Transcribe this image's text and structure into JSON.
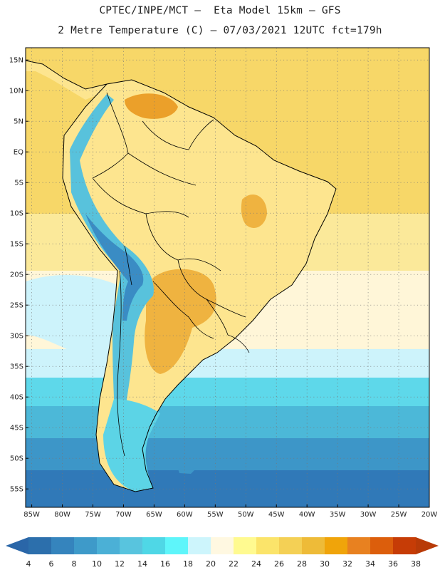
{
  "title_line_1": "CPTEC/INPE/MCT –  Eta Model 15km – GFS",
  "title_line_2": "2 Metre Temperature (C) – 07/03/2021 12UTC fct=179h",
  "map": {
    "lat_labels": [
      "15N",
      "10N",
      "5N",
      "EQ",
      "5S",
      "10S",
      "15S",
      "20S",
      "25S",
      "30S",
      "35S",
      "40S",
      "45S",
      "50S",
      "55S"
    ],
    "lat_values": [
      15,
      10,
      5,
      0,
      -5,
      -10,
      -15,
      -20,
      -25,
      -30,
      -35,
      -40,
      -45,
      -50,
      -55
    ],
    "lon_labels": [
      "85W",
      "80W",
      "75W",
      "70W",
      "65W",
      "60W",
      "55W",
      "50W",
      "45W",
      "40W",
      "35W",
      "30W",
      "25W",
      "20W"
    ],
    "lon_values": [
      -85,
      -80,
      -75,
      -70,
      -65,
      -60,
      -55,
      -50,
      -45,
      -40,
      -35,
      -30,
      -25,
      -20
    ],
    "lat_range": [
      -58,
      17
    ],
    "lon_range": [
      -86,
      -20
    ]
  },
  "colorbar": {
    "tick_labels": [
      "4",
      "6",
      "8",
      "10",
      "12",
      "14",
      "16",
      "18",
      "20",
      "22",
      "24",
      "26",
      "28",
      "30",
      "32",
      "34",
      "36",
      "38"
    ],
    "colors": [
      "#2c6fac",
      "#3584bd",
      "#3e9ac9",
      "#4bb0d6",
      "#58c4de",
      "#4fd7e6",
      "#5ef5fa",
      "#cdf5fc",
      "#fff8e1",
      "#fffa90",
      "#fbe46a",
      "#f4d055",
      "#eebb38",
      "#f0a40a",
      "#e88120",
      "#dc5e0c",
      "#c63c06"
    ],
    "left_arrow_color": "#2a66a8",
    "right_arrow_color": "#b83a07"
  },
  "field_colors": {
    "ocean_north": "#f7d768",
    "ocean_south_mid": "#fbe99a",
    "ocean_pale": "#fff6d8",
    "ocean_cool_1": "#cdf3fb",
    "ocean_cool_2": "#5ed8ea",
    "ocean_cold_1": "#4cb8d8",
    "ocean_cold_2": "#3d96c8",
    "ocean_cold_3": "#3079b8",
    "land_warm": "#fde58f",
    "land_hot": "#efb340",
    "land_hotter": "#eba02a",
    "andes_cold": "#58c2dc",
    "andes_cold_deep": "#3a8cc4",
    "patagonia": "#5cd4e6"
  }
}
